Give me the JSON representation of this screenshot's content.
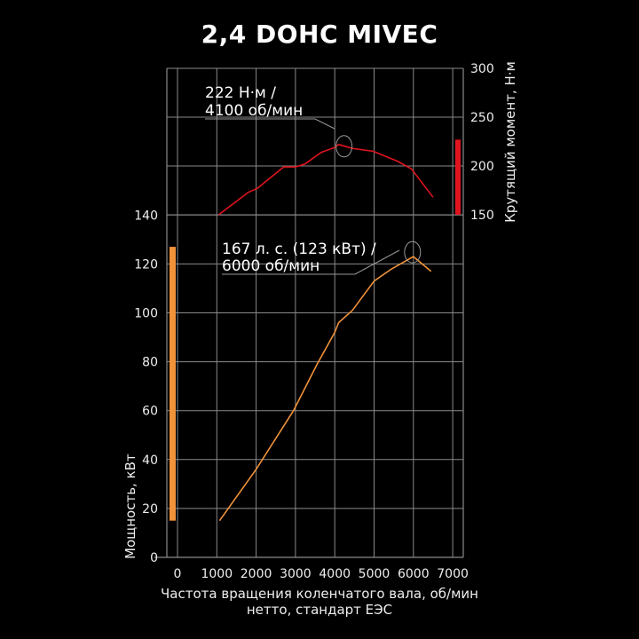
{
  "chart_data": {
    "type": "line",
    "title": "2,4 DOHC MIVEC",
    "xlabel": [
      "Частота вращения коленчатого вала, об/мин",
      "нетто, стандарт ЕЭС"
    ],
    "ylabel_left": "Мощность, кВт",
    "ylabel_right": "Крутящий момент, Н·м",
    "xlim": [
      0,
      7000
    ],
    "xticks": [
      "0",
      "1000",
      "2000",
      "3000",
      "4000",
      "5000",
      "6000",
      "7000"
    ],
    "ylim_left": [
      0,
      140
    ],
    "yticks_left": [
      "0",
      "20",
      "40",
      "60",
      "80",
      "100",
      "120",
      "140"
    ],
    "ylim_right": [
      150,
      300
    ],
    "yticks_right": [
      "150",
      "200",
      "250",
      "300"
    ],
    "grid": true,
    "series": [
      {
        "axis": "right",
        "color": "#e0141e",
        "x": [
          1050,
          1800,
          2030,
          2700,
          3000,
          3240,
          3660,
          4000,
          4100,
          4450,
          4980,
          5590,
          5950,
          6500
        ],
        "y": [
          150,
          173,
          177,
          199,
          199,
          202,
          214,
          219,
          222,
          218,
          215,
          205,
          197,
          168
        ]
      },
      {
        "axis": "left",
        "color": "#f0923a",
        "x": [
          1070,
          2000,
          2950,
          3550,
          4000,
          4100,
          4450,
          5000,
          5450,
          6000,
          6450
        ],
        "y": [
          15,
          36,
          60,
          79,
          92,
          96,
          101,
          113,
          118,
          123,
          117
        ]
      }
    ],
    "range_bars": [
      {
        "axis": "left",
        "color": "#f0923a",
        "from": 15,
        "to": 127
      },
      {
        "axis": "right",
        "color": "#e0141e",
        "from": 150,
        "to": 227
      }
    ],
    "annotations": [
      {
        "lines": [
          "222 Н·м /",
          "4100 об/мин"
        ],
        "x": 4100,
        "y": 222,
        "axis": "right"
      },
      {
        "lines": [
          "167 л. с. (123 кВт) /",
          "6000 об/мин"
        ],
        "x": 6000,
        "y": 123,
        "axis": "left"
      }
    ]
  }
}
